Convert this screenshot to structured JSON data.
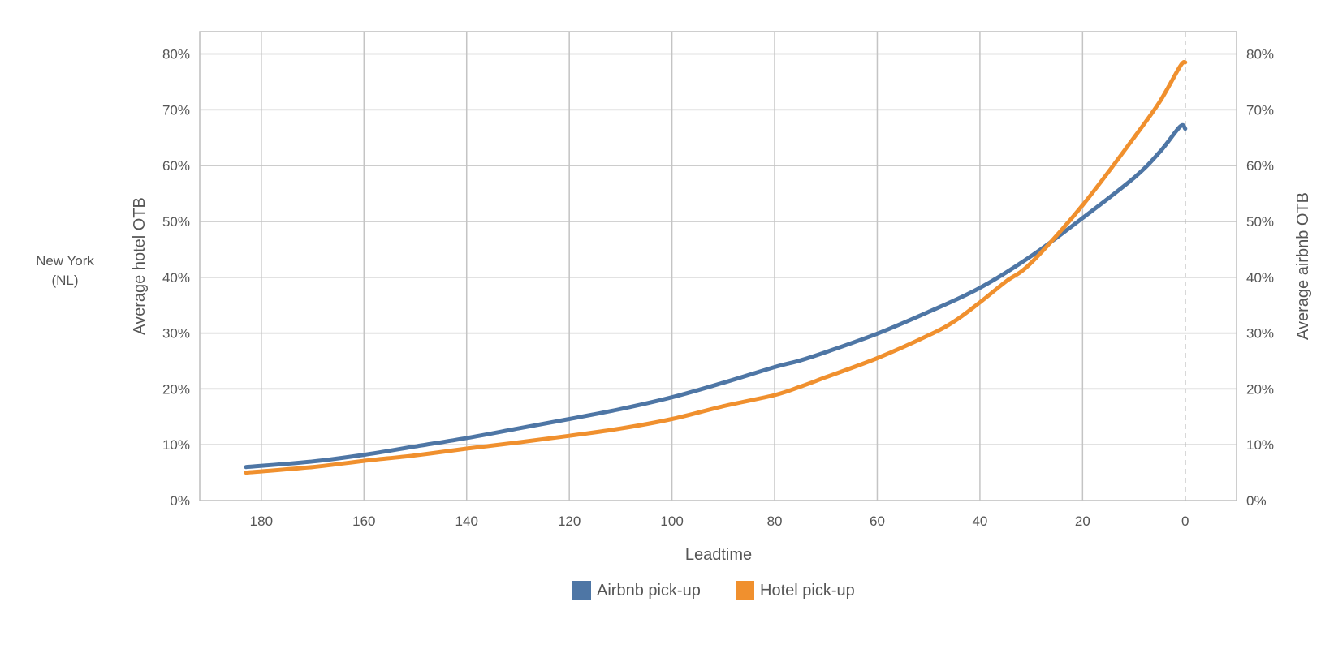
{
  "chart_data": {
    "type": "line",
    "region_label": [
      "New York",
      "(NL)"
    ],
    "xlabel": "Leadtime",
    "ylabel_left": "Average hotel OTB",
    "ylabel_right": "Average airbnb OTB",
    "x_ticks": [
      "180",
      "160",
      "140",
      "120",
      "100",
      "80",
      "60",
      "40",
      "20",
      "0"
    ],
    "y_ticks": [
      "0%",
      "10%",
      "20%",
      "30%",
      "40%",
      "50%",
      "60%",
      "70%",
      "80%"
    ],
    "xlim": [
      192,
      -10
    ],
    "ylim": [
      0,
      84
    ],
    "x_reversed": true,
    "grid": true,
    "reference_line_x": 0,
    "legend_position": "bottom",
    "series": [
      {
        "name": "Airbnb pick-up",
        "color": "#4e76a5",
        "x": [
          183,
          170,
          160,
          150,
          140,
          130,
          120,
          110,
          100,
          90,
          80,
          75,
          70,
          60,
          50,
          40,
          30,
          20,
          10,
          5,
          1,
          0
        ],
        "y": [
          6,
          7,
          8.2,
          9.7,
          11.2,
          12.9,
          14.6,
          16.4,
          18.5,
          21.1,
          23.9,
          25.1,
          26.6,
          29.9,
          33.8,
          38.1,
          43.8,
          50.6,
          57.8,
          62.4,
          67,
          66.6
        ]
      },
      {
        "name": "Hotel pick-up",
        "color": "#f0902e",
        "x": [
          183,
          170,
          160,
          150,
          140,
          130,
          120,
          110,
          100,
          90,
          80,
          75,
          70,
          60,
          50,
          45,
          40,
          35,
          30,
          20,
          10,
          5,
          1,
          0
        ],
        "y": [
          5,
          6,
          7.1,
          8.1,
          9.3,
          10.4,
          11.6,
          12.9,
          14.6,
          16.9,
          18.9,
          20.4,
          22.1,
          25.5,
          29.6,
          32.1,
          35.5,
          39.2,
          42.6,
          52.9,
          65,
          71.4,
          77.8,
          78.5
        ]
      }
    ]
  }
}
